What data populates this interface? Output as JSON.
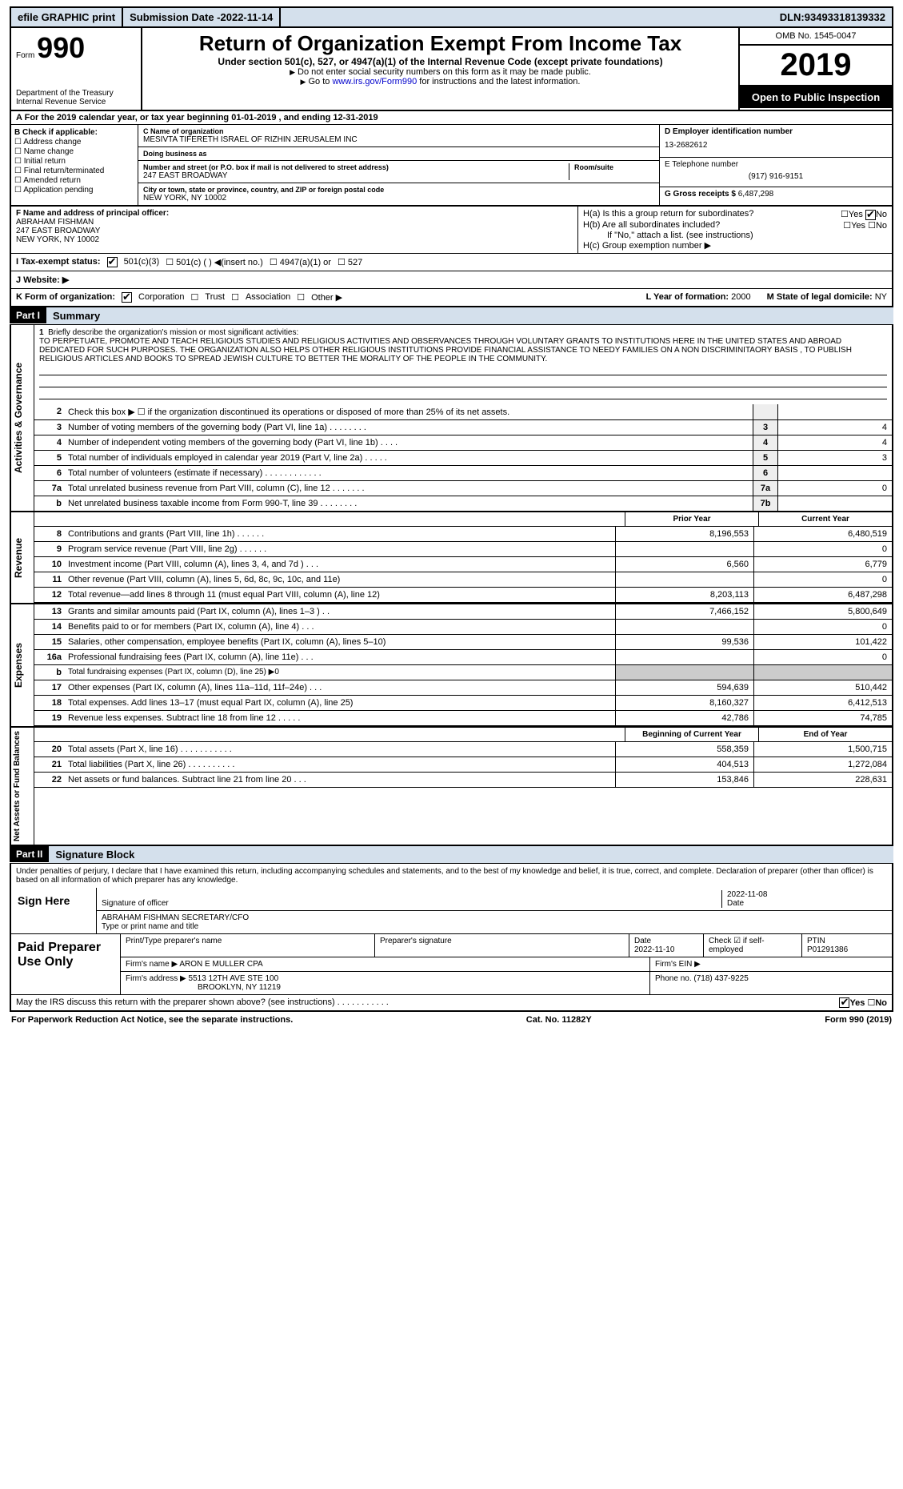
{
  "topbar": {
    "efile": "efile GRAPHIC print",
    "sub_label": "Submission Date - ",
    "sub_date": "2022-11-14",
    "dln_label": "DLN: ",
    "dln": "93493318139332"
  },
  "header": {
    "form_word": "Form",
    "form_num": "990",
    "dept1": "Department of the Treasury",
    "dept2": "Internal Revenue Service",
    "title": "Return of Organization Exempt From Income Tax",
    "sub": "Under section 501(c), 527, or 4947(a)(1) of the Internal Revenue Code (except private foundations)",
    "note1": "Do not enter social security numbers on this form as it may be made public.",
    "note2_a": "Go to ",
    "note2_link": "www.irs.gov/Form990",
    "note2_b": " for instructions and the latest information.",
    "omb": "OMB No. 1545-0047",
    "year": "2019",
    "open": "Open to Public Inspection"
  },
  "row_a": "For the 2019 calendar year, or tax year beginning 01-01-2019   , and ending 12-31-2019",
  "b": {
    "lbl": "B Check if applicable:",
    "o1": "Address change",
    "o2": "Name change",
    "o3": "Initial return",
    "o4": "Final return/terminated",
    "o5": "Amended return",
    "o6": "Application pending"
  },
  "c": {
    "name_lbl": "C Name of organization",
    "name": "MESIVTA TIFERETH ISRAEL OF RIZHIN JERUSALEM INC",
    "dba_lbl": "Doing business as",
    "dba": "",
    "addr_lbl": "Number and street (or P.O. box if mail is not delivered to street address)",
    "room_lbl": "Room/suite",
    "addr": "247 EAST BROADWAY",
    "city_lbl": "City or town, state or province, country, and ZIP or foreign postal code",
    "city": "NEW YORK, NY  10002"
  },
  "d": {
    "ein_lbl": "D Employer identification number",
    "ein": "13-2682612",
    "tel_lbl": "E Telephone number",
    "tel": "(917) 916-9151",
    "gross_lbl": "G Gross receipts $ ",
    "gross": "6,487,298"
  },
  "f": {
    "lbl": "F  Name and address of principal officer:",
    "name": "ABRAHAM FISHMAN",
    "addr1": "247 EAST BROADWAY",
    "addr2": "NEW YORK, NY  10002"
  },
  "h": {
    "a_lbl": "H(a)  Is this a group return for subordinates?",
    "b_lbl": "H(b)  Are all subordinates included?",
    "b_note": "If \"No,\" attach a list. (see instructions)",
    "c_lbl": "H(c)  Group exemption number ▶",
    "yes": "Yes",
    "no": "No"
  },
  "i": {
    "lbl": "I   Tax-exempt status:",
    "o1": "501(c)(3)",
    "o2": "501(c) (  ) ◀(insert no.)",
    "o3": "4947(a)(1) or",
    "o4": "527"
  },
  "j": {
    "lbl": "J  Website: ▶"
  },
  "k": {
    "lbl": "K Form of organization:",
    "o1": "Corporation",
    "o2": "Trust",
    "o3": "Association",
    "o4": "Other ▶",
    "l_lbl": "L Year of formation: ",
    "l_val": "2000",
    "m_lbl": "M State of legal domicile: ",
    "m_val": "NY"
  },
  "part1": {
    "num": "Part I",
    "title": "Summary"
  },
  "mission": {
    "lead": "Briefly describe the organization's mission or most significant activities:",
    "text": "TO PERPETUATE, PROMOTE AND TEACH RELIGIOUS STUDIES AND RELIGIOUS ACTIVITIES AND OBSERVANCES THROUGH VOLUNTARY GRANTS TO INSTITUTIONS HERE IN THE UNITED STATES AND ABROAD DEDICATED FOR SUCH PURPOSES. THE ORGANIZATION ALSO HELPS OTHER RELIGIOUS INSTITUTIONS PROVIDE FINANCIAL ASSISTANCE TO NEEDY FAMILIES ON A NON DISCRIMINITAORY BASIS , TO PUBLISH RELIGIOUS ARTICLES AND BOOKS TO SPREAD JEWISH CULTURE TO BETTER THE MORALITY OF THE PEOPLE IN THE COMMUNITY."
  },
  "vtabs": {
    "gov": "Activities & Governance",
    "rev": "Revenue",
    "exp": "Expenses",
    "na": "Net Assets or Fund Balances"
  },
  "lines_gov": [
    {
      "n": "2",
      "t": "Check this box ▶ ☐  if the organization discontinued its operations or disposed of more than 25% of its net assets.",
      "box": "",
      "val": ""
    },
    {
      "n": "3",
      "t": "Number of voting members of the governing body (Part VI, line 1a)   .    .    .    .    .    .    .    .",
      "box": "3",
      "val": "4"
    },
    {
      "n": "4",
      "t": "Number of independent voting members of the governing body (Part VI, line 1b)   .    .    .    .",
      "box": "4",
      "val": "4"
    },
    {
      "n": "5",
      "t": "Total number of individuals employed in calendar year 2019 (Part V, line 2a)   .    .    .    .    .",
      "box": "5",
      "val": "3"
    },
    {
      "n": "6",
      "t": "Total number of volunteers (estimate if necessary)   .    .    .    .    .    .    .    .    .    .    .    .",
      "box": "6",
      "val": ""
    },
    {
      "n": "7a",
      "t": "Total unrelated business revenue from Part VIII, column (C), line 12   .    .    .    .    .    .    .",
      "box": "7a",
      "val": "0"
    },
    {
      "n": "b",
      "t": "Net unrelated business taxable income from Form 990-T, line 39   .    .    .    .    .    .    .    .",
      "box": "7b",
      "val": ""
    }
  ],
  "hdr_2col": {
    "prior": "Prior Year",
    "curr": "Current Year"
  },
  "lines_rev": [
    {
      "n": "8",
      "t": "Contributions and grants (Part VIII, line 1h)   .    .    .    .    .    .",
      "p": "8,196,553",
      "c": "6,480,519"
    },
    {
      "n": "9",
      "t": "Program service revenue (Part VIII, line 2g)   .    .    .    .    .    .",
      "p": "",
      "c": "0"
    },
    {
      "n": "10",
      "t": "Investment income (Part VIII, column (A), lines 3, 4, and 7d )   .    .    .",
      "p": "6,560",
      "c": "6,779"
    },
    {
      "n": "11",
      "t": "Other revenue (Part VIII, column (A), lines 5, 6d, 8c, 9c, 10c, and 11e)",
      "p": "",
      "c": "0"
    },
    {
      "n": "12",
      "t": "Total revenue—add lines 8 through 11 (must equal Part VIII, column (A), line 12)",
      "p": "8,203,113",
      "c": "6,487,298"
    }
  ],
  "lines_exp": [
    {
      "n": "13",
      "t": "Grants and similar amounts paid (Part IX, column (A), lines 1–3 )   .    .",
      "p": "7,466,152",
      "c": "5,800,649"
    },
    {
      "n": "14",
      "t": "Benefits paid to or for members (Part IX, column (A), line 4)   .    .    .",
      "p": "",
      "c": "0"
    },
    {
      "n": "15",
      "t": "Salaries, other compensation, employee benefits (Part IX, column (A), lines 5–10)",
      "p": "99,536",
      "c": "101,422"
    },
    {
      "n": "16a",
      "t": "Professional fundraising fees (Part IX, column (A), line 11e)   .    .    .",
      "p": "",
      "c": "0"
    },
    {
      "n": "b",
      "t": "Total fundraising expenses (Part IX, column (D), line 25) ▶0",
      "p": "",
      "c": "",
      "nb": true
    },
    {
      "n": "17",
      "t": "Other expenses (Part IX, column (A), lines 11a–11d, 11f–24e)   .    .    .",
      "p": "594,639",
      "c": "510,442"
    },
    {
      "n": "18",
      "t": "Total expenses. Add lines 13–17 (must equal Part IX, column (A), line 25)",
      "p": "8,160,327",
      "c": "6,412,513"
    },
    {
      "n": "19",
      "t": "Revenue less expenses. Subtract line 18 from line 12   .    .    .    .    .",
      "p": "42,786",
      "c": "74,785"
    }
  ],
  "hdr_na": {
    "prior": "Beginning of Current Year",
    "curr": "End of Year"
  },
  "lines_na": [
    {
      "n": "20",
      "t": "Total assets (Part X, line 16)   .    .    .    .    .    .    .    .    .    .    .",
      "p": "558,359",
      "c": "1,500,715"
    },
    {
      "n": "21",
      "t": "Total liabilities (Part X, line 26)   .    .    .    .    .    .    .    .    .    .",
      "p": "404,513",
      "c": "1,272,084"
    },
    {
      "n": "22",
      "t": "Net assets or fund balances. Subtract line 21 from line 20   .    .    .",
      "p": "153,846",
      "c": "228,631"
    }
  ],
  "part2": {
    "num": "Part II",
    "title": "Signature Block"
  },
  "decl": "Under penalties of perjury, I declare that I have examined this return, including accompanying schedules and statements, and to the best of my knowledge and belief, it is true, correct, and complete. Declaration of preparer (other than officer) is based on all information of which preparer has any knowledge.",
  "sign": {
    "lbl": "Sign Here",
    "sig_lbl": "Signature of officer",
    "date": "2022-11-08",
    "date_lbl": "Date",
    "name": "ABRAHAM FISHMAN  SECRETARY/CFO",
    "name_lbl": "Type or print name and title"
  },
  "prep": {
    "lbl": "Paid Preparer Use Only",
    "h1": "Print/Type preparer's name",
    "h2": "Preparer's signature",
    "h3": "Date",
    "date": "2022-11-10",
    "h4": "Check ☑ if self-employed",
    "h5_lbl": "PTIN",
    "ptin": "P01291386",
    "firm_lbl": "Firm's name    ▶ ",
    "firm": "ARON E MULLER CPA",
    "ein_lbl": "Firm's EIN ▶",
    "addr_lbl": "Firm's address ▶ ",
    "addr1": "5513 12TH AVE STE 100",
    "addr2": "BROOKLYN, NY  11219",
    "phone_lbl": "Phone no. ",
    "phone": "(718) 437-9225"
  },
  "discuss": "May the IRS discuss this return with the preparer shown above? (see instructions)   .    .    .    .    .    .    .    .    .    .    .",
  "footer": {
    "l": "For Paperwork Reduction Act Notice, see the separate instructions.",
    "c": "Cat. No. 11282Y",
    "r": "Form 990 (2019)"
  }
}
